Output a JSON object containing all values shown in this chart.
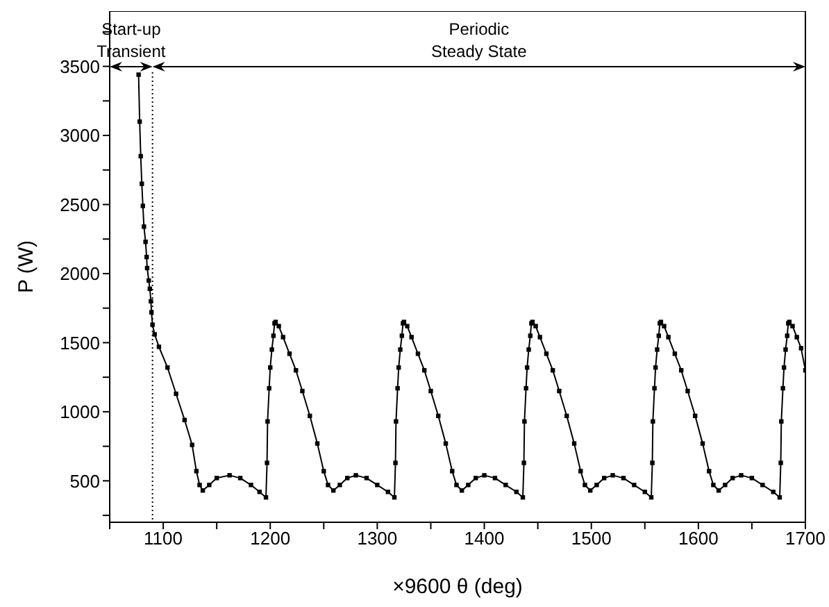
{
  "chart_data": {
    "type": "line",
    "xlabel": "×9600 θ (deg)",
    "ylabel": "P (W)",
    "x": [
      1077,
      1078,
      1079,
      1080,
      1081,
      1082,
      1083.5,
      1084.5,
      1085,
      1086.5,
      1087.5,
      1088.5,
      1089,
      1090,
      1092,
      1096,
      1104,
      1112,
      1120,
      1127,
      1131,
      1134,
      1137,
      1143,
      1150,
      1162,
      1172,
      1182,
      1190,
      1196,
      1197,
      1197.5,
      1199,
      1200,
      1201.5,
      1203,
      1204,
      1205,
      1208,
      1212,
      1218,
      1224,
      1230,
      1237,
      1244,
      1250,
      1254,
      1259,
      1265,
      1272,
      1280,
      1290,
      1300,
      1310,
      1316,
      1317,
      1317.5,
      1319,
      1320,
      1321.5,
      1323,
      1324,
      1325,
      1328,
      1332,
      1338,
      1344,
      1350,
      1357,
      1364,
      1370,
      1374,
      1379,
      1385,
      1392,
      1400,
      1410,
      1420,
      1430,
      1436,
      1437,
      1437.5,
      1439,
      1440,
      1441.5,
      1443,
      1444,
      1445,
      1448,
      1452,
      1458,
      1464,
      1470,
      1477,
      1484,
      1490,
      1494,
      1499,
      1505,
      1512,
      1520,
      1530,
      1540,
      1550,
      1556,
      1557,
      1557.5,
      1559,
      1560,
      1561.5,
      1563,
      1564,
      1565,
      1568,
      1572,
      1578,
      1584,
      1590,
      1597,
      1604,
      1610,
      1614,
      1619,
      1625,
      1632,
      1640,
      1650,
      1660,
      1670,
      1676,
      1677,
      1677.5,
      1679,
      1680,
      1681.5,
      1683,
      1684,
      1685,
      1688,
      1692,
      1696,
      1700
    ],
    "series": [
      {
        "color": "#000000",
        "values": [
          3440,
          3100,
          2850,
          2650,
          2490,
          2340,
          2230,
          2120,
          2040,
          1950,
          1890,
          1800,
          1720,
          1630,
          1560,
          1470,
          1320,
          1130,
          940,
          760,
          570,
          470,
          430,
          470,
          520,
          540,
          520,
          470,
          420,
          380,
          630,
          930,
          1170,
          1320,
          1450,
          1550,
          1640,
          1650,
          1620,
          1540,
          1420,
          1300,
          1150,
          970,
          770,
          570,
          470,
          430,
          470,
          520,
          540,
          520,
          470,
          420,
          380,
          630,
          930,
          1170,
          1320,
          1450,
          1550,
          1640,
          1650,
          1620,
          1540,
          1420,
          1300,
          1150,
          970,
          770,
          570,
          470,
          430,
          470,
          520,
          540,
          520,
          470,
          420,
          380,
          630,
          930,
          1170,
          1320,
          1450,
          1550,
          1640,
          1650,
          1620,
          1540,
          1420,
          1300,
          1150,
          970,
          770,
          570,
          470,
          430,
          470,
          520,
          540,
          520,
          470,
          420,
          380,
          630,
          930,
          1170,
          1320,
          1450,
          1550,
          1640,
          1650,
          1620,
          1540,
          1420,
          1300,
          1150,
          970,
          770,
          570,
          470,
          430,
          470,
          520,
          540,
          520,
          470,
          420,
          380,
          630,
          930,
          1170,
          1320,
          1450,
          1550,
          1640,
          1650,
          1620,
          1540,
          1460,
          1300
        ]
      }
    ],
    "xlim": [
      1050,
      1700
    ],
    "xticks": [
      {
        "value": 1050,
        "label": null
      },
      1100,
      {
        "value": 1150,
        "label": null
      },
      1200,
      {
        "value": 1250,
        "label": null
      },
      1300,
      {
        "value": 1350,
        "label": null
      },
      1400,
      {
        "value": 1450,
        "label": null
      },
      1500,
      {
        "value": 1550,
        "label": null
      },
      1600,
      {
        "value": 1650,
        "label": null
      },
      1700
    ],
    "ylim": [
      200,
      3900
    ],
    "yticks": [
      {
        "value": 250,
        "label": null
      },
      500,
      {
        "value": 750,
        "label": null
      },
      1000,
      {
        "value": 1250,
        "label": null
      },
      1500,
      {
        "value": 1750,
        "label": null
      },
      2000,
      {
        "value": 2250,
        "label": null
      },
      2500,
      {
        "value": 2750,
        "label": null
      },
      3000,
      {
        "value": 3250,
        "label": null
      },
      3500,
      {
        "value": 3750,
        "label": null
      }
    ],
    "marker": "square",
    "line_style": "solid",
    "ref_lines": [
      {
        "axis": "x",
        "value": 1090,
        "line_style": "dotted",
        "color": "#000000"
      }
    ],
    "annotations": [
      "Start-up Transient",
      "Periodic Steady State"
    ]
  }
}
